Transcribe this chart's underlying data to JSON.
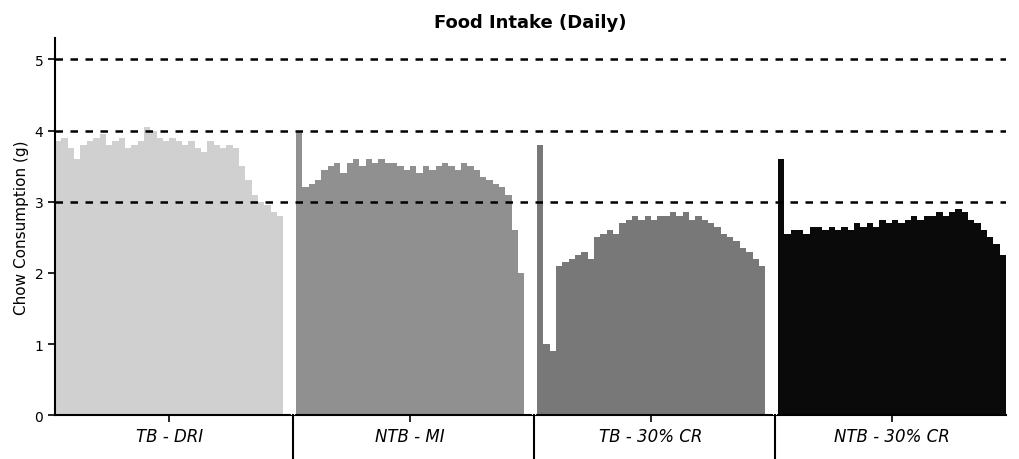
{
  "title": "Food Intake (Daily)",
  "ylabel": "Chow Consumption (g)",
  "ylim": [
    0,
    5.3
  ],
  "yticks": [
    0,
    1,
    2,
    3,
    4,
    5
  ],
  "hlines": [
    3.0,
    4.0,
    5.0
  ],
  "group_labels": [
    "TB - DRI",
    "NTB - MI",
    "TB - 30% CR",
    "NTB - 30% CR"
  ],
  "group_colors": [
    "#d0d0d0",
    "#909090",
    "#787878",
    "#0a0a0a"
  ],
  "background_color": "#ffffff",
  "label_fontsize": 11,
  "title_fontsize": 13,
  "tick_fontsize": 10,
  "xlabel_fontsize": 12,
  "TB_DRI": [
    3.85,
    3.9,
    3.75,
    3.6,
    3.8,
    3.85,
    3.9,
    3.95,
    3.8,
    3.85,
    3.9,
    3.75,
    3.8,
    3.85,
    4.05,
    4.0,
    3.9,
    3.85,
    3.9,
    3.85,
    3.8,
    3.85,
    3.75,
    3.7,
    3.85,
    3.8,
    3.75,
    3.8,
    3.75,
    3.5,
    3.3,
    3.1,
    3.0,
    2.95,
    2.85,
    2.8
  ],
  "NTB_MI": [
    4.0,
    3.2,
    3.25,
    3.3,
    3.45,
    3.5,
    3.55,
    3.4,
    3.55,
    3.6,
    3.5,
    3.6,
    3.55,
    3.6,
    3.55,
    3.55,
    3.5,
    3.45,
    3.5,
    3.4,
    3.5,
    3.45,
    3.5,
    3.55,
    3.5,
    3.45,
    3.55,
    3.5,
    3.45,
    3.35,
    3.3,
    3.25,
    3.2,
    3.1,
    2.6,
    2.0
  ],
  "TB_CR": [
    3.8,
    1.0,
    0.9,
    2.1,
    2.15,
    2.2,
    2.25,
    2.3,
    2.2,
    2.5,
    2.55,
    2.6,
    2.55,
    2.7,
    2.75,
    2.8,
    2.75,
    2.8,
    2.75,
    2.8,
    2.8,
    2.85,
    2.8,
    2.85,
    2.75,
    2.8,
    2.75,
    2.7,
    2.65,
    2.55,
    2.5,
    2.45,
    2.35,
    2.3,
    2.2,
    2.1
  ],
  "NTB_CR": [
    3.6,
    2.55,
    2.6,
    2.6,
    2.55,
    2.65,
    2.65,
    2.6,
    2.65,
    2.6,
    2.65,
    2.6,
    2.7,
    2.65,
    2.7,
    2.65,
    2.75,
    2.7,
    2.75,
    2.7,
    2.75,
    2.8,
    2.75,
    2.8,
    2.8,
    2.85,
    2.8,
    2.85,
    2.9,
    2.85,
    2.75,
    2.7,
    2.6,
    2.5,
    2.4,
    2.25
  ]
}
